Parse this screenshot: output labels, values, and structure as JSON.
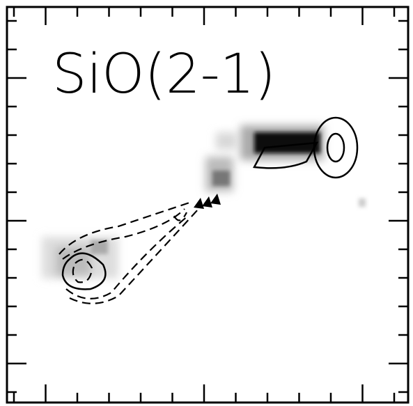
{
  "panel": {
    "label": "SiO(2-1)"
  }
}
